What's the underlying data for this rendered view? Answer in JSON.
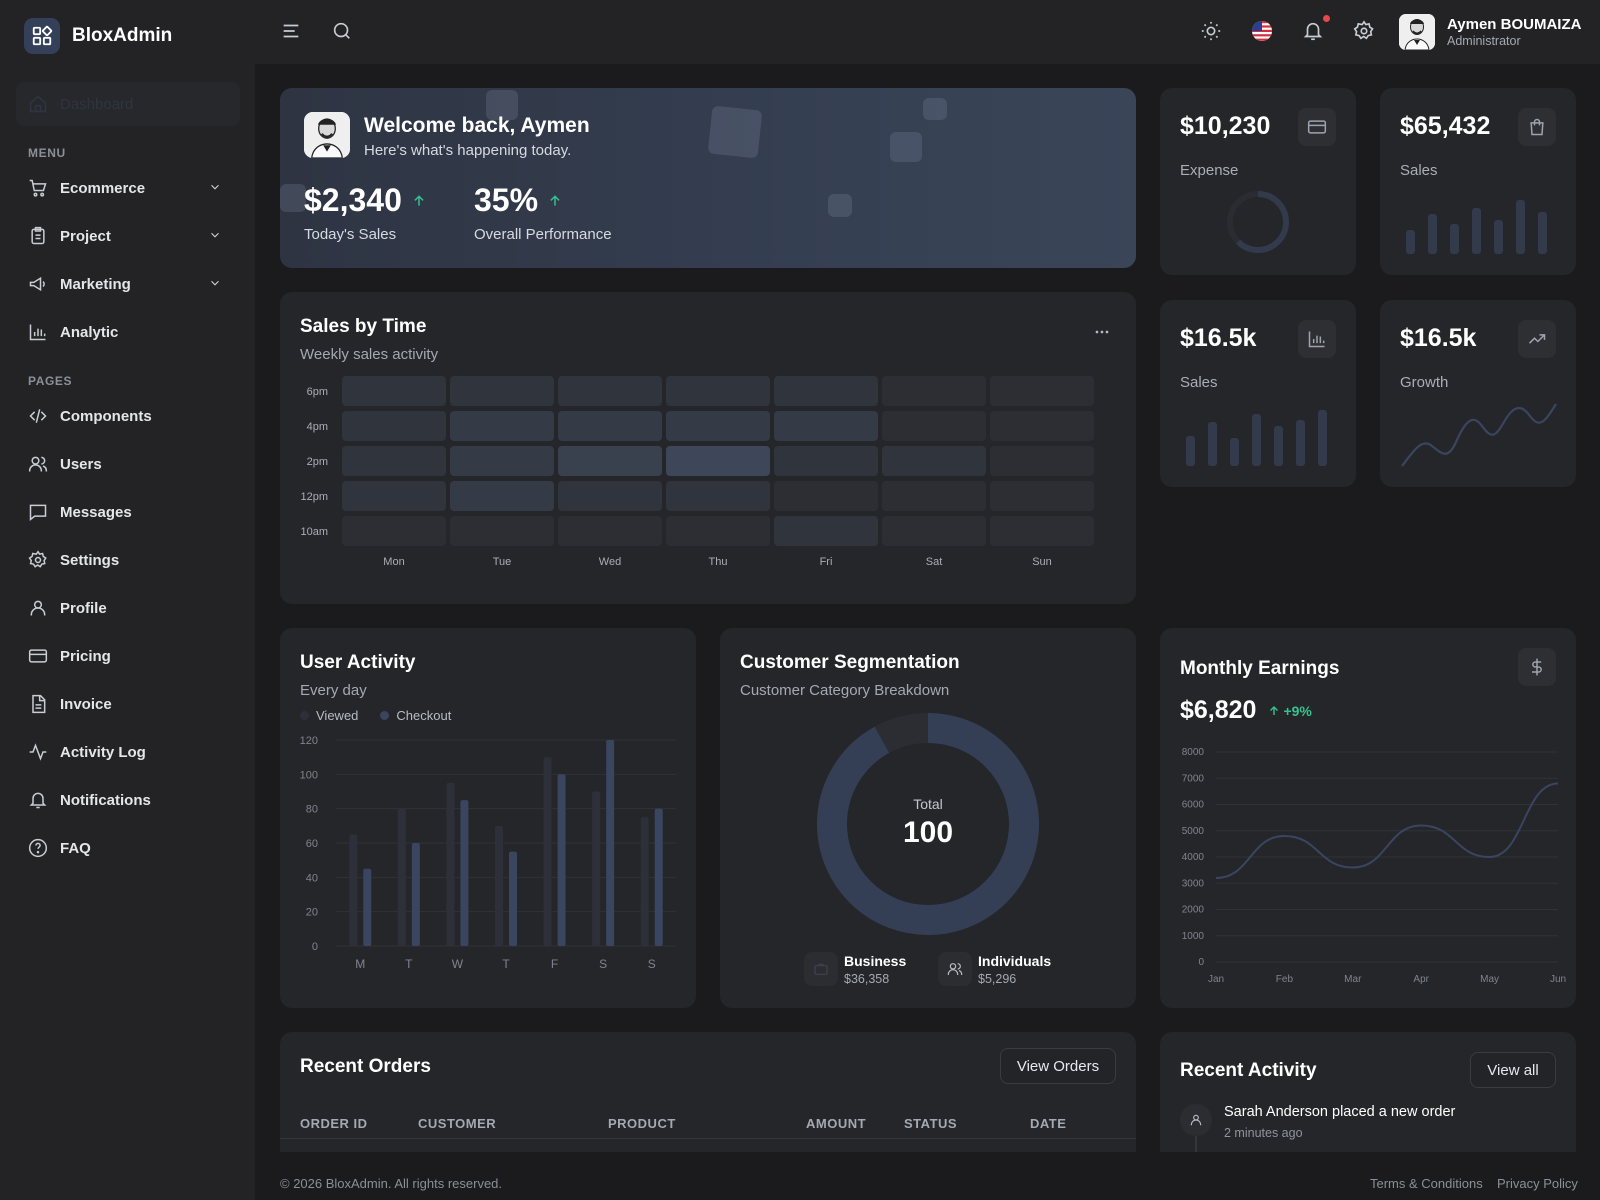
{
  "brand": {
    "name": "BloxAdmin"
  },
  "sidebar": {
    "dashboard_label": "Dashboard",
    "menu_heading": "MENU",
    "pages_heading": "PAGES",
    "menu_items": [
      {
        "label": "Ecommerce",
        "icon": "cart-icon",
        "has_submenu": true
      },
      {
        "label": "Project",
        "icon": "clipboard-icon",
        "has_submenu": true
      },
      {
        "label": "Marketing",
        "icon": "megaphone-icon",
        "has_submenu": true
      },
      {
        "label": "Analytic",
        "icon": "bar-chart-icon",
        "has_submenu": false
      }
    ],
    "page_items": [
      {
        "label": "Components",
        "icon": "code-icon"
      },
      {
        "label": "Users",
        "icon": "users-icon"
      },
      {
        "label": "Messages",
        "icon": "message-icon"
      },
      {
        "label": "Settings",
        "icon": "gear-icon"
      },
      {
        "label": "Profile",
        "icon": "user-icon"
      },
      {
        "label": "Pricing",
        "icon": "credit-card-icon"
      },
      {
        "label": "Invoice",
        "icon": "invoice-icon"
      },
      {
        "label": "Activity Log",
        "icon": "activity-icon"
      },
      {
        "label": "Notifications",
        "icon": "bell-icon"
      },
      {
        "label": "FAQ",
        "icon": "help-icon"
      }
    ]
  },
  "header": {
    "user_name": "Aymen BOUMAIZA",
    "user_role": "Administrator",
    "has_unread_notifications": true
  },
  "welcome": {
    "title": "Welcome back, Aymen",
    "subtitle": "Here's what's happening today.",
    "sales_value": "$2,340",
    "sales_label": "Today's Sales",
    "perf_value": "35%",
    "perf_label": "Overall Performance"
  },
  "stats": [
    {
      "value": "$10,230",
      "label": "Expense",
      "icon": "credit-card-icon"
    },
    {
      "value": "$65,432",
      "label": "Sales",
      "icon": "shopping-bag-icon"
    },
    {
      "value": "$16.5k",
      "label": "Sales",
      "icon": "bar-chart-icon"
    },
    {
      "value": "$16.5k",
      "label": "Growth",
      "icon": "trending-up-icon"
    }
  ],
  "sales_by_time": {
    "title": "Sales by Time",
    "subtitle": "Weekly sales activity",
    "chart_data": {
      "type": "heatmap",
      "rows": [
        "6pm",
        "4pm",
        "2pm",
        "12pm",
        "10am"
      ],
      "columns": [
        "Mon",
        "Tue",
        "Wed",
        "Thu",
        "Fri",
        "Sat",
        "Sun"
      ],
      "values": [
        [
          2,
          2,
          2,
          2,
          2,
          1,
          1
        ],
        [
          2,
          3,
          3,
          3,
          3,
          1,
          1
        ],
        [
          2,
          3,
          4,
          5,
          2,
          2,
          1
        ],
        [
          2,
          3,
          2,
          2,
          1,
          1,
          1
        ],
        [
          1,
          1,
          1,
          1,
          2,
          1,
          1
        ]
      ]
    }
  },
  "user_activity": {
    "title": "User Activity",
    "subtitle": "Every day",
    "chart_data": {
      "type": "bar",
      "categories": [
        "M",
        "T",
        "W",
        "T",
        "F",
        "S",
        "S"
      ],
      "series": [
        {
          "name": "Viewed",
          "values": [
            65,
            80,
            95,
            70,
            110,
            90,
            75
          ],
          "color": "#2d3038"
        },
        {
          "name": "Checkout",
          "values": [
            45,
            60,
            85,
            55,
            100,
            120,
            80
          ],
          "color": "#3a4560"
        }
      ],
      "ylim": [
        0,
        120
      ],
      "yticks": [
        0,
        20,
        40,
        60,
        80,
        100,
        120
      ],
      "grid": true,
      "legend": "top-left"
    }
  },
  "customer_segmentation": {
    "title": "Customer Segmentation",
    "subtitle": "Customer Category Breakdown",
    "total_label": "Total",
    "total_value": "100",
    "chart_data": {
      "type": "pie",
      "labels": [
        "Individuals",
        "Business"
      ],
      "values": [
        92,
        8
      ],
      "colors": [
        "#343f55",
        "#2b2d33"
      ]
    },
    "segments": [
      {
        "name": "Business",
        "amount": "$36,358",
        "icon": "briefcase-icon"
      },
      {
        "name": "Individuals",
        "amount": "$5,296",
        "icon": "users-icon"
      }
    ]
  },
  "monthly_earnings": {
    "title": "Monthly Earnings",
    "value": "$6,820",
    "change": "+9%",
    "chart_data": {
      "type": "line",
      "x": [
        "Jan",
        "Feb",
        "Mar",
        "Apr",
        "May",
        "Jun"
      ],
      "values": [
        3200,
        4800,
        3600,
        5200,
        4000,
        6800
      ],
      "ylim": [
        0,
        8000
      ],
      "yticks": [
        0,
        1000,
        2000,
        3000,
        4000,
        5000,
        6000,
        7000,
        8000
      ],
      "ytick_labels": [
        "0",
        "1000",
        "2000",
        "3000",
        "4000",
        "5000",
        "6000",
        "7000",
        "8000"
      ],
      "grid": true
    }
  },
  "recent_orders": {
    "title": "Recent Orders",
    "button_label": "View Orders",
    "columns": [
      "ORDER ID",
      "CUSTOMER",
      "PRODUCT",
      "AMOUNT",
      "STATUS",
      "DATE"
    ]
  },
  "recent_activity": {
    "title": "Recent Activity",
    "button_label": "View all",
    "items": [
      {
        "text": "Sarah Anderson placed a new order",
        "time": "2 minutes ago"
      }
    ]
  },
  "footer": {
    "copyright": "© 2026 BloxAdmin. All rights reserved.",
    "terms": "Terms & Conditions",
    "privacy": "Privacy Policy"
  },
  "colors": {
    "background": "#1b1b1d",
    "panel": "#252629",
    "accent": "#3a4560",
    "positive": "#34c38f",
    "alert": "#e5484d"
  }
}
